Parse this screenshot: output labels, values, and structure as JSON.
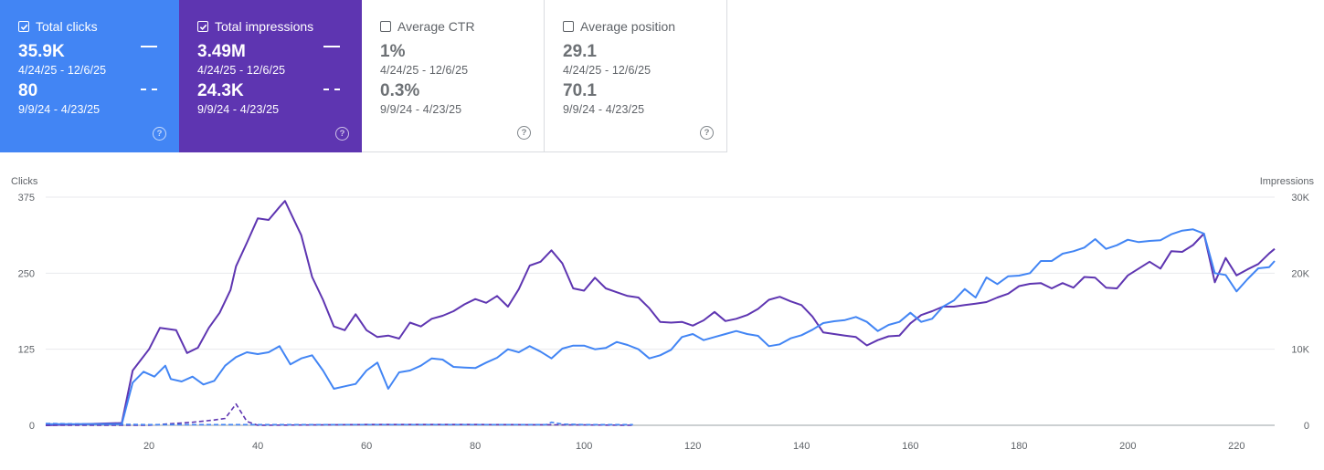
{
  "cards": [
    {
      "label": "Total clicks",
      "checked": true,
      "value1": "35.9K",
      "range1": "4/24/25 - 12/6/25",
      "value2": "80",
      "range2": "9/9/24 - 4/23/25"
    },
    {
      "label": "Total impressions",
      "checked": true,
      "value1": "3.49M",
      "range1": "4/24/25 - 12/6/25",
      "value2": "24.3K",
      "range2": "9/9/24 - 4/23/25"
    },
    {
      "label": "Average CTR",
      "checked": false,
      "value1": "1%",
      "range1": "4/24/25 - 12/6/25",
      "value2": "0.3%",
      "range2": "9/9/24 - 4/23/25"
    },
    {
      "label": "Average position",
      "checked": false,
      "value1": "29.1",
      "range1": "4/24/25 - 12/6/25",
      "value2": "70.1",
      "range2": "9/9/24 - 4/23/25"
    }
  ],
  "help_glyph": "?",
  "colors": {
    "clicks": "#4285f4",
    "impressions": "#5e35b1",
    "grid": "#e8eaed",
    "axis_text": "#5f6368"
  },
  "chart_data": {
    "type": "line",
    "y_left": {
      "label": "Clicks",
      "ticks": [
        "375",
        "250",
        "125",
        "0"
      ],
      "range": [
        0,
        375
      ]
    },
    "y_right": {
      "label": "Impressions",
      "ticks": [
        "30K",
        "20K",
        "10K",
        "0"
      ],
      "range": [
        0,
        30000
      ]
    },
    "x_ticks": [
      "20",
      "40",
      "60",
      "80",
      "100",
      "120",
      "140",
      "160",
      "180",
      "200",
      "220"
    ],
    "x_range": [
      1,
      227
    ],
    "series": [
      {
        "key": "impressions",
        "style": "solid",
        "color": "#5e35b1",
        "points": [
          [
            1,
            0
          ],
          [
            15,
            300
          ],
          [
            17,
            7200
          ],
          [
            20,
            10000
          ],
          [
            22,
            12800
          ],
          [
            25,
            12500
          ],
          [
            27,
            9500
          ],
          [
            29,
            10200
          ],
          [
            31,
            12800
          ],
          [
            33,
            14800
          ],
          [
            35,
            17800
          ],
          [
            36,
            20900
          ],
          [
            38,
            24000
          ],
          [
            40,
            27200
          ],
          [
            42,
            27000
          ],
          [
            44,
            28700
          ],
          [
            45,
            29500
          ],
          [
            46,
            28000
          ],
          [
            48,
            25000
          ],
          [
            50,
            19500
          ],
          [
            52,
            16500
          ],
          [
            54,
            13000
          ],
          [
            56,
            12500
          ],
          [
            58,
            14600
          ],
          [
            60,
            12500
          ],
          [
            62,
            11600
          ],
          [
            64,
            11800
          ],
          [
            66,
            11400
          ],
          [
            68,
            13500
          ],
          [
            70,
            13000
          ],
          [
            72,
            14000
          ],
          [
            74,
            14400
          ],
          [
            76,
            15000
          ],
          [
            78,
            15900
          ],
          [
            80,
            16600
          ],
          [
            82,
            16100
          ],
          [
            84,
            17000
          ],
          [
            86,
            15600
          ],
          [
            88,
            17900
          ],
          [
            90,
            21000
          ],
          [
            92,
            21500
          ],
          [
            94,
            23000
          ],
          [
            96,
            21300
          ],
          [
            98,
            18000
          ],
          [
            100,
            17700
          ],
          [
            102,
            19400
          ],
          [
            104,
            18000
          ],
          [
            106,
            17500
          ],
          [
            108,
            17000
          ],
          [
            110,
            16800
          ],
          [
            112,
            15400
          ],
          [
            114,
            13600
          ],
          [
            116,
            13500
          ],
          [
            118,
            13600
          ],
          [
            120,
            13100
          ],
          [
            122,
            13800
          ],
          [
            124,
            14900
          ],
          [
            126,
            13700
          ],
          [
            128,
            14000
          ],
          [
            130,
            14500
          ],
          [
            132,
            15300
          ],
          [
            134,
            16500
          ],
          [
            136,
            16900
          ],
          [
            138,
            16300
          ],
          [
            140,
            15800
          ],
          [
            142,
            14300
          ],
          [
            144,
            12200
          ],
          [
            146,
            12000
          ],
          [
            148,
            11800
          ],
          [
            150,
            11600
          ],
          [
            152,
            10500
          ],
          [
            154,
            11200
          ],
          [
            156,
            11700
          ],
          [
            158,
            11800
          ],
          [
            160,
            13400
          ],
          [
            162,
            14500
          ],
          [
            164,
            15000
          ],
          [
            166,
            15600
          ],
          [
            168,
            15600
          ],
          [
            170,
            15800
          ],
          [
            172,
            16000
          ],
          [
            174,
            16200
          ],
          [
            176,
            16800
          ],
          [
            178,
            17300
          ],
          [
            180,
            18300
          ],
          [
            182,
            18600
          ],
          [
            184,
            18700
          ],
          [
            186,
            18000
          ],
          [
            188,
            18700
          ],
          [
            190,
            18100
          ],
          [
            192,
            19500
          ],
          [
            194,
            19400
          ],
          [
            196,
            18100
          ],
          [
            198,
            18000
          ],
          [
            200,
            19700
          ],
          [
            202,
            20600
          ],
          [
            204,
            21500
          ],
          [
            206,
            20600
          ],
          [
            208,
            22900
          ],
          [
            210,
            22800
          ],
          [
            212,
            23700
          ],
          [
            214,
            25200
          ],
          [
            215,
            22000
          ],
          [
            216,
            18800
          ],
          [
            218,
            22000
          ],
          [
            220,
            19700
          ],
          [
            222,
            20500
          ],
          [
            224,
            21200
          ],
          [
            226,
            22600
          ],
          [
            227,
            23200
          ]
        ]
      },
      {
        "key": "clicks",
        "style": "solid",
        "color": "#4285f4",
        "points": [
          [
            1,
            2
          ],
          [
            15,
            2
          ],
          [
            17,
            70
          ],
          [
            19,
            88
          ],
          [
            21,
            80
          ],
          [
            23,
            98
          ],
          [
            24,
            76
          ],
          [
            26,
            72
          ],
          [
            28,
            80
          ],
          [
            30,
            67
          ],
          [
            32,
            73
          ],
          [
            34,
            98
          ],
          [
            36,
            112
          ],
          [
            38,
            120
          ],
          [
            40,
            117
          ],
          [
            42,
            120
          ],
          [
            44,
            130
          ],
          [
            46,
            100
          ],
          [
            48,
            110
          ],
          [
            50,
            115
          ],
          [
            52,
            90
          ],
          [
            54,
            60
          ],
          [
            56,
            64
          ],
          [
            58,
            68
          ],
          [
            60,
            90
          ],
          [
            62,
            103
          ],
          [
            64,
            60
          ],
          [
            66,
            87
          ],
          [
            68,
            90
          ],
          [
            70,
            98
          ],
          [
            72,
            110
          ],
          [
            74,
            108
          ],
          [
            76,
            96
          ],
          [
            78,
            95
          ],
          [
            80,
            94
          ],
          [
            82,
            103
          ],
          [
            84,
            111
          ],
          [
            86,
            125
          ],
          [
            88,
            120
          ],
          [
            90,
            130
          ],
          [
            92,
            121
          ],
          [
            94,
            110
          ],
          [
            96,
            126
          ],
          [
            98,
            131
          ],
          [
            100,
            131
          ],
          [
            102,
            125
          ],
          [
            104,
            127
          ],
          [
            106,
            137
          ],
          [
            108,
            132
          ],
          [
            110,
            125
          ],
          [
            112,
            110
          ],
          [
            114,
            115
          ],
          [
            116,
            124
          ],
          [
            118,
            145
          ],
          [
            120,
            150
          ],
          [
            122,
            140
          ],
          [
            124,
            145
          ],
          [
            126,
            150
          ],
          [
            128,
            155
          ],
          [
            130,
            150
          ],
          [
            132,
            147
          ],
          [
            134,
            130
          ],
          [
            136,
            133
          ],
          [
            138,
            143
          ],
          [
            140,
            148
          ],
          [
            142,
            157
          ],
          [
            144,
            168
          ],
          [
            146,
            171
          ],
          [
            148,
            173
          ],
          [
            150,
            178
          ],
          [
            152,
            170
          ],
          [
            154,
            155
          ],
          [
            156,
            165
          ],
          [
            158,
            170
          ],
          [
            160,
            185
          ],
          [
            162,
            170
          ],
          [
            164,
            175
          ],
          [
            166,
            195
          ],
          [
            168,
            205
          ],
          [
            170,
            224
          ],
          [
            172,
            210
          ],
          [
            174,
            243
          ],
          [
            176,
            232
          ],
          [
            178,
            245
          ],
          [
            180,
            246
          ],
          [
            182,
            250
          ],
          [
            184,
            270
          ],
          [
            186,
            270
          ],
          [
            188,
            282
          ],
          [
            190,
            286
          ],
          [
            192,
            292
          ],
          [
            194,
            306
          ],
          [
            196,
            290
          ],
          [
            198,
            296
          ],
          [
            200,
            305
          ],
          [
            202,
            301
          ],
          [
            204,
            303
          ],
          [
            206,
            304
          ],
          [
            208,
            314
          ],
          [
            210,
            320
          ],
          [
            212,
            322
          ],
          [
            214,
            315
          ],
          [
            216,
            250
          ],
          [
            218,
            247
          ],
          [
            220,
            220
          ],
          [
            222,
            240
          ],
          [
            224,
            258
          ],
          [
            226,
            260
          ],
          [
            227,
            270
          ]
        ]
      },
      {
        "key": "impressions_prev",
        "style": "dashed",
        "color": "#5e35b1",
        "points": [
          [
            1,
            0
          ],
          [
            20,
            0
          ],
          [
            24,
            200
          ],
          [
            28,
            400
          ],
          [
            32,
            700
          ],
          [
            34,
            900
          ],
          [
            36,
            2800
          ],
          [
            38,
            500
          ],
          [
            40,
            0
          ],
          [
            60,
            100
          ],
          [
            80,
            100
          ],
          [
            100,
            50
          ],
          [
            109,
            0
          ]
        ]
      },
      {
        "key": "clicks_prev",
        "style": "dashed",
        "color": "#4285f4",
        "points": [
          [
            1,
            3
          ],
          [
            20,
            1
          ],
          [
            40,
            1
          ],
          [
            60,
            1
          ],
          [
            80,
            1
          ],
          [
            93,
            1
          ],
          [
            94,
            5
          ],
          [
            96,
            2
          ],
          [
            100,
            1
          ],
          [
            109,
            1
          ]
        ]
      }
    ]
  }
}
